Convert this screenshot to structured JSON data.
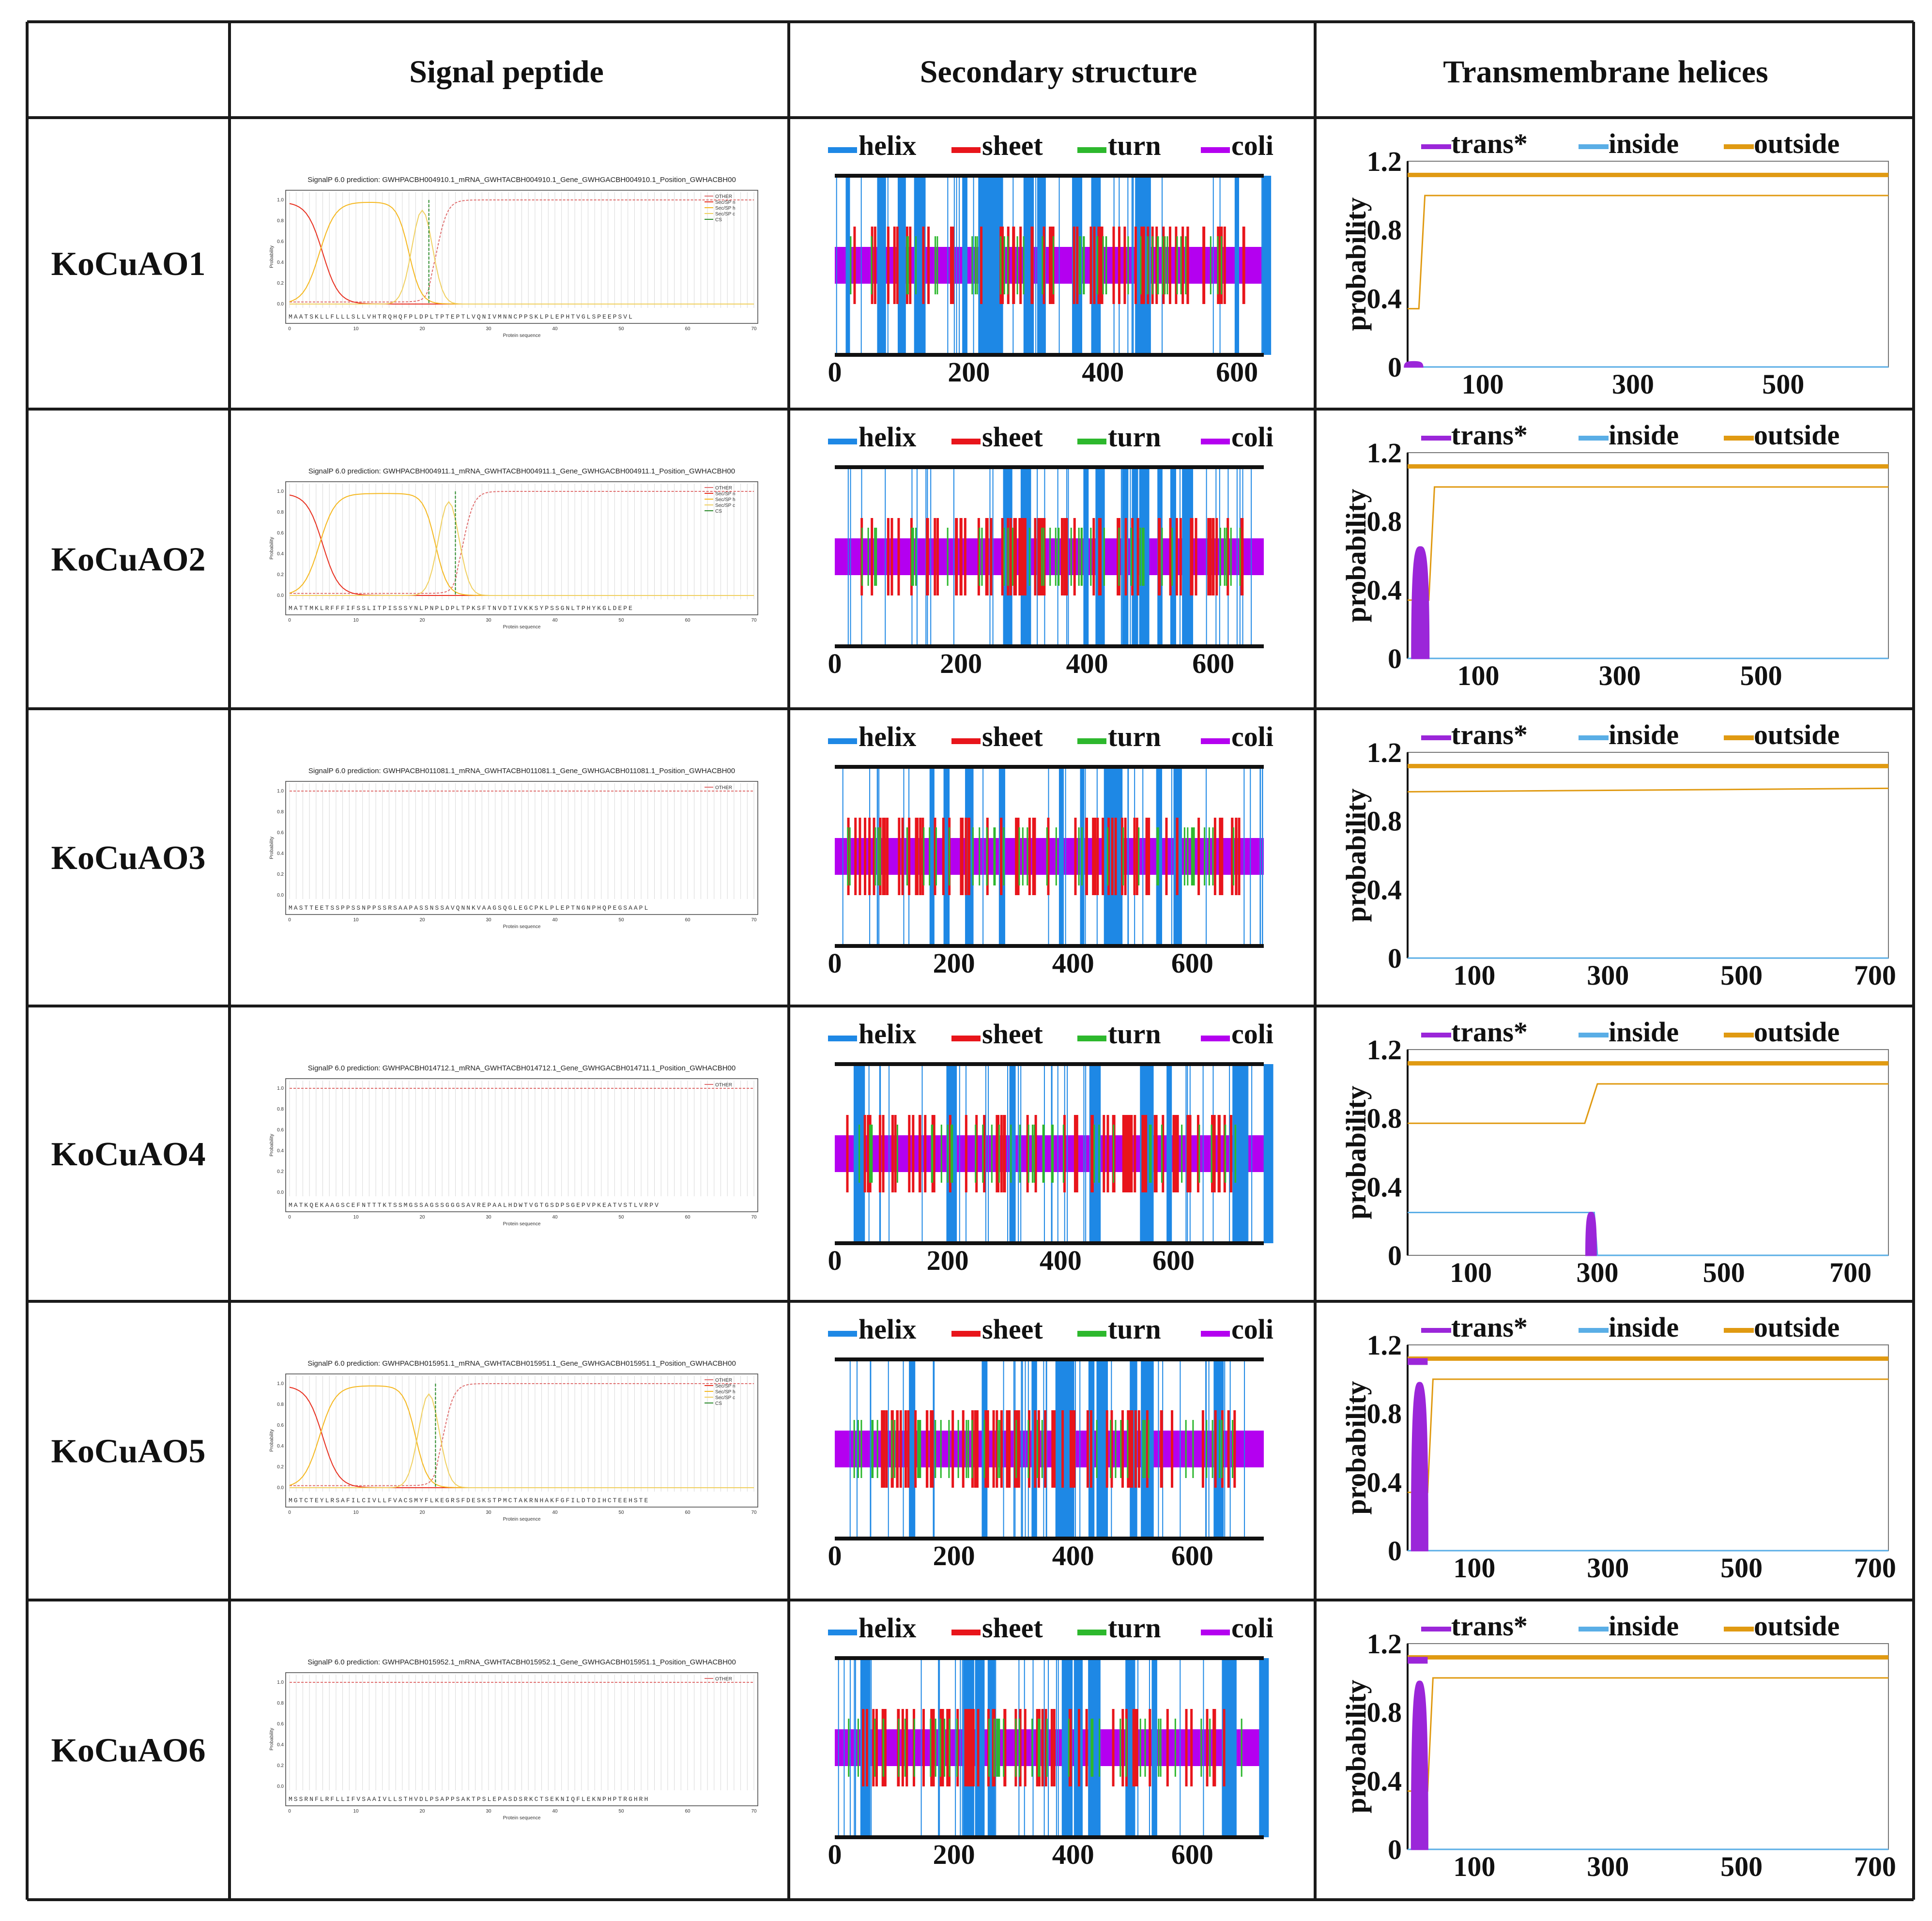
{
  "headers": {
    "corner": "",
    "signal": "Signal peptide",
    "secondary": "Secondary structure",
    "tm": "Transmembrane helices"
  },
  "legends": {
    "ss": [
      "helix",
      "sheet",
      "turn",
      "coli"
    ],
    "tm": [
      "trans*",
      "inside",
      "outside"
    ]
  },
  "colors": {
    "helix": "#1e88e5",
    "sheet": "#e8151b",
    "turn": "#2db82d",
    "coli": "#b400f0",
    "trans": "#9b26d9",
    "inside": "#5aaee6",
    "outside": "#e09a12",
    "sp_other": "#e07070",
    "sp_n": "#e83020",
    "sp_h": "#f5b820",
    "sp_c": "#f0d060",
    "sp_cs": "#2a8a2a"
  },
  "sp_legend_full": [
    "OTHER",
    "Sec/SP n",
    "Sec/SP h",
    "Sec/SP c",
    "CS"
  ],
  "sp_legend_short": [
    "OTHER"
  ],
  "sp_xlabel": "Protein sequence",
  "sp_ylabel": "Probability",
  "tm_ylabel": "probability",
  "rows": [
    {
      "name": "KoCuAO1",
      "sp_title": "SignalP 6.0 prediction: GWHPACBH004910.1_mRNA_GWHTACBH004910.1_Gene_GWHGACBH004910.1_Position_GWHACBH00",
      "sp_seq": "MAATSKLLFLLLSLLVHTRQHQFPLDPLTPTEPTLVQNIVMNNCPPSKLPLEPHTVGLSPEEPSVL",
      "sp_has_signal": true,
      "sp_cut": 21,
      "ss_length": 640,
      "ss_ticks": [
        "0",
        "200",
        "400",
        "600"
      ],
      "tm_length": 640,
      "tm_ticks": [
        "100",
        "300",
        "500"
      ],
      "tm_y_ticks": [
        "0",
        "0.4",
        "0.8",
        "1.2"
      ],
      "tm_trans_end": 15,
      "tm_trans_peak": 0.03
    },
    {
      "name": "KoCuAO2",
      "sp_title": "SignalP 6.0 prediction: GWHPACBH004911.1_mRNA_GWHTACBH004911.1_Gene_GWHGACBH004911.1_Position_GWHACBH00",
      "sp_seq": "MATTMKLRFFFIFSSLITPISSSYNLPNPLDPLTPKSFTNVDTIVKKSYPSSGNLTPHYKGLDEPE",
      "sp_has_signal": true,
      "sp_cut": 25,
      "ss_length": 680,
      "ss_ticks": [
        "0",
        "200",
        "400",
        "600"
      ],
      "tm_length": 680,
      "tm_ticks": [
        "100",
        "300",
        "500"
      ],
      "tm_y_ticks": [
        "0",
        "0.4",
        "0.8",
        "1.2"
      ],
      "tm_trans_end": 30,
      "tm_trans_peak": 0.65
    },
    {
      "name": "KoCuAO3",
      "sp_title": "SignalP 6.0 prediction: GWHPACBH011081.1_mRNA_GWHTACBH011081.1_Gene_GWHGACBH011081.1_Position_GWHACBH00",
      "sp_seq": "MASTTEETSSPPSSNPPSSRSAAPASSNSSAVQNNKVAAGSQGLEGCPKLPLEPTNGNPHQPEGSAAPL",
      "sp_has_signal": false,
      "sp_cut": 0,
      "ss_length": 720,
      "ss_ticks": [
        "0",
        "200",
        "400",
        "600"
      ],
      "tm_length": 720,
      "tm_ticks": [
        "100",
        "300",
        "500",
        "700"
      ],
      "tm_y_ticks": [
        "0",
        "0.4",
        "0.8",
        "1.2"
      ],
      "tm_trans_end": 0,
      "tm_trans_peak": 0
    },
    {
      "name": "KoCuAO4",
      "sp_title": "SignalP 6.0 prediction: GWHPACBH014712.1_mRNA_GWHTACBH014712.1_Gene_GWHGACBH014711.1_Position_GWHACBH00",
      "sp_seq": "MATKQEKAAGSCEFNTTTKTSSMGSSAGSSGGGSAVREPAALHDWTVGTGSDPSGEPVPKEATVSTLVRPV",
      "sp_has_signal": false,
      "sp_cut": 0,
      "ss_length": 760,
      "ss_ticks": [
        "0",
        "200",
        "400",
        "600"
      ],
      "tm_length": 760,
      "tm_ticks": [
        "100",
        "300",
        "500",
        "700"
      ],
      "tm_y_ticks": [
        "0",
        "0.4",
        "0.8",
        "1.2"
      ],
      "tm_trans_end": 0,
      "tm_trans_peak": 0.25,
      "tm_mid": 290
    },
    {
      "name": "KoCuAO5",
      "sp_title": "SignalP 6.0 prediction: GWHPACBH015951.1_mRNA_GWHTACBH015951.1_Gene_GWHGACBH015951.1_Position_GWHACBH00",
      "sp_seq": "MGTCTEYLRSAFILCIVLLFVACSMYFLKEGRSFDESKSTPMCTAKRNHAKFGFILDTDIHCTEEHSTE",
      "sp_has_signal": true,
      "sp_cut": 22,
      "ss_length": 720,
      "ss_ticks": [
        "0",
        "200",
        "400",
        "600"
      ],
      "tm_length": 720,
      "tm_ticks": [
        "100",
        "300",
        "500",
        "700"
      ],
      "tm_y_ticks": [
        "0",
        "0.4",
        "0.8",
        "1.2"
      ],
      "tm_trans_end": 30,
      "tm_trans_peak": 0.98
    },
    {
      "name": "KoCuAO6",
      "sp_title": "SignalP 6.0 prediction: GWHPACBH015952.1_mRNA_GWHTACBH015952.1_Gene_GWHGACBH015951.1_Position_GWHACBH00",
      "sp_seq": "MSSRNFLRFLLIFVSAAIVLLSTHVDLPSAPPSAKTPSLEPASDSRKCTSEKNIQFLEKNPHPTRGHRH",
      "sp_has_signal": false,
      "sp_cut": 0,
      "ss_length": 720,
      "ss_ticks": [
        "0",
        "200",
        "400",
        "600"
      ],
      "tm_length": 720,
      "tm_ticks": [
        "100",
        "300",
        "500",
        "700"
      ],
      "tm_y_ticks": [
        "0",
        "0.4",
        "0.8",
        "1.2"
      ],
      "tm_trans_end": 30,
      "tm_trans_peak": 0.98
    }
  ]
}
